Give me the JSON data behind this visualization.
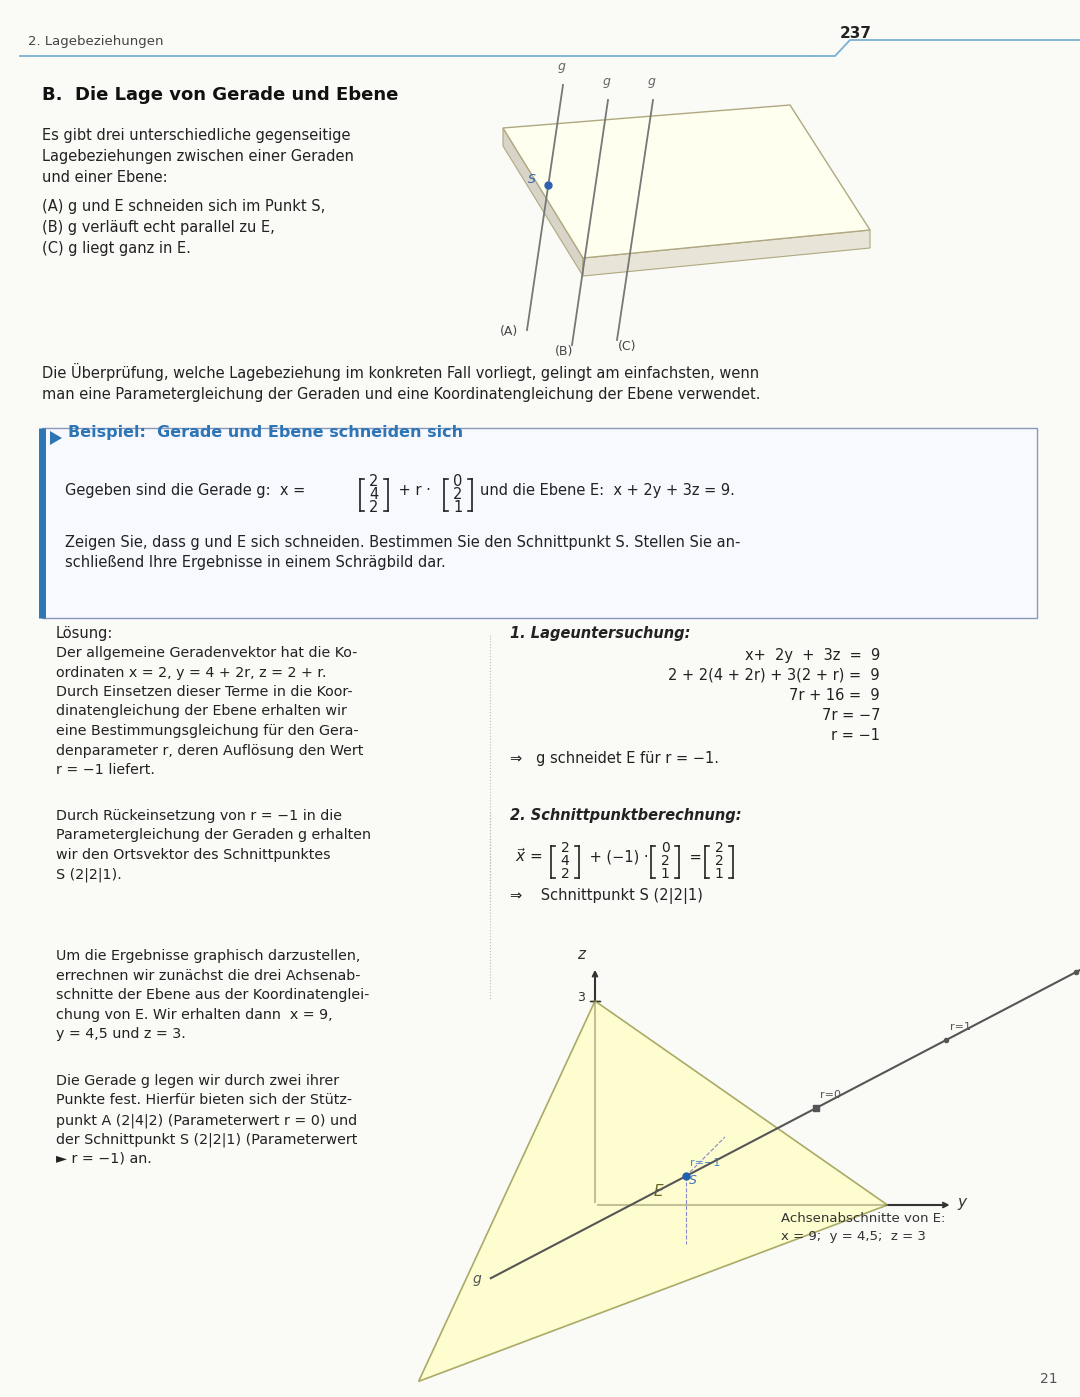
{
  "page_number": "237",
  "header_left": "2. Lagebeziehungen",
  "bg_color": "#f5f4f0",
  "page_bg": "#fafaf7",
  "header_line_color": "#7ab0d4",
  "section_title": "B.  Die Lage von Gerade und Ebene",
  "intro_text": [
    "Es gibt drei unterschiedliche gegenseitige",
    "Lagebeziehungen zwischen einer Geraden",
    "und einer Ebene:"
  ],
  "list_items": [
    "(A) g und E schneiden sich im Punkt S,",
    "(B) g verläuft echt parallel zu E,",
    "(C) g liegt ganz in E."
  ],
  "middle_text": [
    "Die Überprüfung, welche Lagebeziehung im konkreten Fall vorliegt, gelingt am einfachsten, wenn",
    "man eine Parametergleichung der Geraden und eine Koordinatengleichung der Ebene verwendet."
  ],
  "beispiel_title": "Beispiel:  Gerade und Ebene schneiden sich",
  "beispiel_color": "#2e75b6",
  "beispiel_vec1": [
    "2",
    "4",
    "2"
  ],
  "beispiel_vec2": [
    "0",
    "2",
    "1"
  ],
  "beispiel_text3": "und die Ebene E:  x + 2y + 3z = 9.",
  "beispiel_task": [
    "Zeigen Sie, dass g und E sich schneiden. Bestimmen Sie den Schnittpunkt S. Stellen Sie an-",
    "schließend Ihre Ergebnisse in einem Schrägbild dar."
  ],
  "loesung_label": "Lösung:",
  "loesung_left": [
    "Der allgemeine Geradenvektor hat die Ko-",
    "ordinaten x = 2, y = 4 + 2r, z = 2 + r.",
    "Durch Einsetzen dieser Terme in die Koor-",
    "dinatengleichung der Ebene erhalten wir",
    "eine Bestimmungsgleichung für den Gera-",
    "denparameter r, deren Auflösung den Wert",
    "r = −1 liefert."
  ],
  "loesung_left2": [
    "Durch Rückeinsetzung von r = −1 in die",
    "Parametergleichung der Geraden g erhalten",
    "wir den Ortsvektor des Schnittpunktes",
    "S (2|2|1)."
  ],
  "loesung_left3": [
    "Um die Ergebnisse graphisch darzustellen,",
    "errechnen wir zunächst die drei Achsenab-",
    "schnitte der Ebene aus der Koordinateng-",
    "leichung von E. Wir erhalten dann  x = 9,",
    "y = 4,5 und z = 3."
  ],
  "loesung_left4": [
    "Die Gerade g legen wir durch zwei ihrer",
    "Punkte fest. Hierfür bieten sich der Stütz-",
    "punkt A (2|4|2) (Parameterwert r = 0) und",
    "der Schnittpunkt S (2|2|1) (Parameterwert",
    "► r = −1) an."
  ],
  "lageuntersuchung_title": "1. Lageuntersuchung:",
  "lageuntersuchung_lines": [
    [
      "x+",
      "2y",
      "+",
      "3z",
      "=",
      "9"
    ],
    [
      "2 + 2(4 + 2r) + 3(2 + r)",
      "=",
      "9"
    ],
    [
      "7r + 16",
      "=",
      "9"
    ],
    [
      "7r",
      "=",
      "−7"
    ],
    [
      "r",
      "=",
      "−1"
    ]
  ],
  "lageuntersuchung_arrow": "⇒   g schneidet E für r = −1.",
  "schnittpunkt_title": "2. Schnittpunktberechnung:",
  "schnittpunkt_vec_a": [
    "2",
    "4",
    "2"
  ],
  "schnittpunkt_vec_b": [
    "0",
    "2",
    "1"
  ],
  "schnittpunkt_vec_c": [
    "2",
    "2",
    "1"
  ],
  "schnittpunkt_arrow": "⇒    Schnittpunkt S (2|2|1)"
}
